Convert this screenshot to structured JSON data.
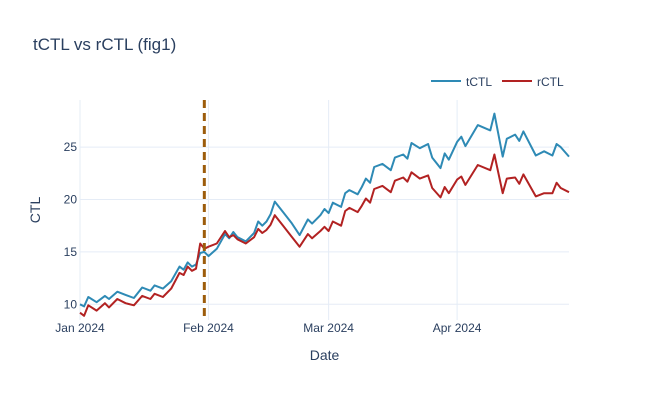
{
  "chart_data": {
    "type": "line",
    "title": "tCTL vs rCTL (fig1)",
    "xlabel": "Date",
    "ylabel": "CTL",
    "x_ticks": [
      {
        "date": "2024-01-01",
        "label": "Jan 2024"
      },
      {
        "date": "2024-02-01",
        "label": "Feb 2024"
      },
      {
        "date": "2024-03-01",
        "label": "Mar 2024"
      },
      {
        "date": "2024-04-01",
        "label": "Apr 2024"
      }
    ],
    "y_ticks": [
      10,
      15,
      20,
      25
    ],
    "xlim": [
      "2024-01-01",
      "2024-05-01"
    ],
    "ylim": [
      8.5,
      29.5
    ],
    "legend_placement": "top-right",
    "vertical_marker": {
      "date": "2024-01-31",
      "color": "#9c5c0c",
      "style": "dashed"
    },
    "x": [
      "2024-01-01",
      "2024-01-02",
      "2024-01-03",
      "2024-01-05",
      "2024-01-07",
      "2024-01-08",
      "2024-01-10",
      "2024-01-12",
      "2024-01-14",
      "2024-01-16",
      "2024-01-18",
      "2024-01-19",
      "2024-01-21",
      "2024-01-23",
      "2024-01-25",
      "2024-01-26",
      "2024-01-27",
      "2024-01-28",
      "2024-01-29",
      "2024-01-30",
      "2024-01-31",
      "2024-02-01",
      "2024-02-03",
      "2024-02-05",
      "2024-02-06",
      "2024-02-07",
      "2024-02-08",
      "2024-02-10",
      "2024-02-12",
      "2024-02-13",
      "2024-02-14",
      "2024-02-15",
      "2024-02-16",
      "2024-02-17",
      "2024-02-19",
      "2024-02-21",
      "2024-02-23",
      "2024-02-25",
      "2024-02-26",
      "2024-02-28",
      "2024-02-29",
      "2024-03-01",
      "2024-03-02",
      "2024-03-04",
      "2024-03-05",
      "2024-03-06",
      "2024-03-08",
      "2024-03-09",
      "2024-03-10",
      "2024-03-11",
      "2024-03-12",
      "2024-03-14",
      "2024-03-16",
      "2024-03-17",
      "2024-03-19",
      "2024-03-20",
      "2024-03-21",
      "2024-03-23",
      "2024-03-25",
      "2024-03-26",
      "2024-03-28",
      "2024-03-29",
      "2024-03-30",
      "2024-04-01",
      "2024-04-02",
      "2024-04-03",
      "2024-04-06",
      "2024-04-09",
      "2024-04-10",
      "2024-04-12",
      "2024-04-13",
      "2024-04-15",
      "2024-04-16",
      "2024-04-17",
      "2024-04-20",
      "2024-04-22",
      "2024-04-24",
      "2024-04-25",
      "2024-04-26",
      "2024-04-28"
    ],
    "series": [
      {
        "name": "tCTL",
        "color": "#2e8ab5",
        "values": [
          10.0,
          9.8,
          10.7,
          10.2,
          10.8,
          10.5,
          11.2,
          10.9,
          10.6,
          11.6,
          11.3,
          11.8,
          11.5,
          12.2,
          13.6,
          13.3,
          14.0,
          13.6,
          13.8,
          14.9,
          15.0,
          14.6,
          15.3,
          16.7,
          16.3,
          16.9,
          16.4,
          16.0,
          16.8,
          17.9,
          17.5,
          17.9,
          18.6,
          19.8,
          18.8,
          17.8,
          16.6,
          18.1,
          17.7,
          18.5,
          19.1,
          18.7,
          19.7,
          19.3,
          20.6,
          20.9,
          20.5,
          21.2,
          22.0,
          21.6,
          23.1,
          23.4,
          22.8,
          24.0,
          24.3,
          23.9,
          25.4,
          24.9,
          25.3,
          24.0,
          23.0,
          24.4,
          23.8,
          25.5,
          26.0,
          25.1,
          27.1,
          26.6,
          28.2,
          24.1,
          25.8,
          26.2,
          25.6,
          26.5,
          24.2,
          24.6,
          24.2,
          25.3,
          25.0,
          24.1
        ]
      },
      {
        "name": "rCTL",
        "color": "#b22222",
        "values": [
          9.2,
          8.9,
          9.9,
          9.4,
          10.1,
          9.7,
          10.5,
          10.1,
          9.9,
          10.8,
          10.5,
          11.0,
          10.7,
          11.5,
          13.0,
          12.8,
          13.6,
          13.2,
          13.4,
          15.8,
          15.3,
          15.5,
          15.8,
          17.0,
          16.4,
          16.6,
          16.2,
          15.8,
          16.4,
          17.2,
          16.8,
          17.1,
          17.6,
          18.5,
          17.5,
          16.5,
          15.5,
          16.7,
          16.3,
          17.0,
          17.4,
          17.0,
          17.9,
          17.5,
          18.9,
          19.2,
          18.8,
          19.4,
          20.1,
          19.7,
          21.0,
          21.3,
          20.7,
          21.8,
          22.1,
          21.7,
          22.6,
          22.0,
          22.3,
          21.1,
          20.2,
          21.2,
          20.6,
          21.9,
          22.2,
          21.4,
          23.3,
          22.8,
          24.3,
          20.6,
          22.0,
          22.1,
          21.5,
          22.4,
          20.3,
          20.6,
          20.6,
          21.6,
          21.1,
          20.7
        ]
      }
    ]
  }
}
